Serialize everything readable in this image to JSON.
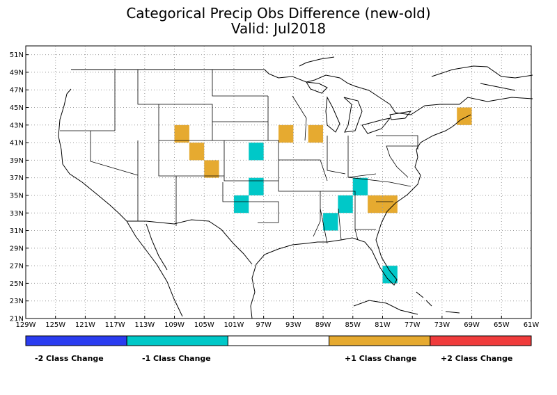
{
  "title": "Categorical Precip Obs Difference (new-old)",
  "subtitle": "Valid: Jul2018",
  "map": {
    "projection": "lat-lon",
    "lon_range": [
      -129,
      -61
    ],
    "lat_range": [
      21,
      52
    ],
    "grid": true,
    "lon_ticks": [
      "129W",
      "125W",
      "121W",
      "117W",
      "113W",
      "109W",
      "105W",
      "101W",
      "97W",
      "93W",
      "89W",
      "85W",
      "81W",
      "77W",
      "73W",
      "69W",
      "65W",
      "61W"
    ],
    "lat_ticks": [
      "21N",
      "23N",
      "25N",
      "27N",
      "29N",
      "31N",
      "33N",
      "35N",
      "37N",
      "39N",
      "41N",
      "43N",
      "45N",
      "47N",
      "49N",
      "51N"
    ]
  },
  "colors": {
    "minus2": "#2a3cf0",
    "minus1": "#00c8c8",
    "zero": "#ffffff",
    "plus1": "#e6aa30",
    "plus2": "#f03c3c",
    "land_lines": "#000000",
    "grid": "#999999"
  },
  "legend": {
    "labels": [
      "-2 Class Change",
      "-1 Class Change",
      "+1 Class Change",
      "+2 Class Change"
    ]
  },
  "chart_data": {
    "type": "heatmap",
    "title": "Categorical Precip Obs Difference (new-old)",
    "subtitle": "Valid: Jul2018",
    "cell_size_deg": [
      2,
      2
    ],
    "categories": [
      "-2 Class Change",
      "-1 Class Change",
      "+1 Class Change",
      "+2 Class Change"
    ],
    "cells": [
      {
        "lon_w": -109,
        "lat_s": 41,
        "change": 1
      },
      {
        "lon_w": -107,
        "lat_s": 39,
        "change": 1
      },
      {
        "lon_w": -105,
        "lat_s": 37,
        "change": 1
      },
      {
        "lon_w": -95,
        "lat_s": 41,
        "change": 1
      },
      {
        "lon_w": -91,
        "lat_s": 41,
        "change": 1
      },
      {
        "lon_w": -71,
        "lat_s": 43,
        "change": 1
      },
      {
        "lon_w": -83,
        "lat_s": 33,
        "change": 1
      },
      {
        "lon_w": -81,
        "lat_s": 33,
        "change": 1
      },
      {
        "lon_w": -99,
        "lat_s": 39,
        "change": -1
      },
      {
        "lon_w": -99,
        "lat_s": 35,
        "change": -1
      },
      {
        "lon_w": -101,
        "lat_s": 33,
        "change": -1
      },
      {
        "lon_w": -87,
        "lat_s": 33,
        "change": -1
      },
      {
        "lon_w": -89,
        "lat_s": 31,
        "change": -1
      },
      {
        "lon_w": -85,
        "lat_s": 35,
        "change": -1
      },
      {
        "lon_w": -81,
        "lat_s": 25,
        "change": -1
      }
    ]
  }
}
